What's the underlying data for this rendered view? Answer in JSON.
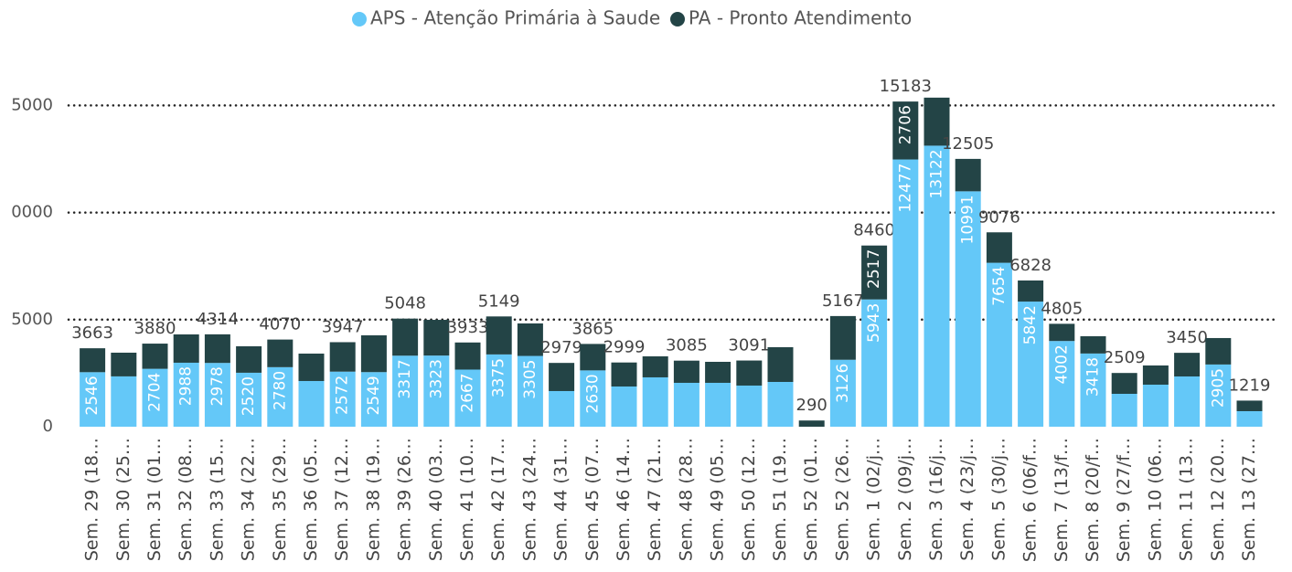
{
  "chart_data": {
    "type": "stacked_bar",
    "categories": [
      "Sem. 29 (18…",
      "Sem. 30 (25…",
      "Sem. 31 (01…",
      "Sem. 32 (08…",
      "Sem. 33 (15…",
      "Sem. 34 (22…",
      "Sem. 35 (29…",
      "Sem. 36 (05…",
      "Sem. 37 (12…",
      "Sem. 38 (19…",
      "Sem. 39 (26…",
      "Sem. 40 (03…",
      "Sem. 41 (10…",
      "Sem. 42 (17…",
      "Sem. 43 (24…",
      "Sem. 44 (31…",
      "Sem. 45 (07…",
      "Sem. 46 (14…",
      "Sem. 47 (21…",
      "Sem. 48 (28…",
      "Sem. 49 (05…",
      "Sem. 50 (12…",
      "Sem. 51 (19…",
      "Sem. 52 (01…",
      "Sem. 52 (26…",
      "Sem. 1 (02/j…",
      "Sem. 2 (09/j…",
      "Sem. 3 (16/j…",
      "Sem. 4 (23/j…",
      "Sem. 5 (30/j…",
      "Sem. 6 (06/f…",
      "Sem. 7 (13/f…",
      "Sem. 8 (20/f…",
      "Sem. 9 (27/f…",
      "Sem. 10 (06…",
      "Sem. 11 (13…",
      "Sem. 12 (20…",
      "Sem. 13 (27…"
    ],
    "series": [
      {
        "name": "APS - Atenção Primária à Saude",
        "color": "#64c8f8",
        "values": [
          2546,
          2350,
          2704,
          2988,
          2978,
          2520,
          2780,
          2134,
          2572,
          2549,
          3317,
          3323,
          2667,
          3375,
          3305,
          1665,
          2630,
          1878,
          2305,
          2049,
          2049,
          1921,
          2091,
          0,
          3126,
          5943,
          12477,
          13122,
          10991,
          7654,
          5842,
          4002,
          3418,
          1536,
          1963,
          2347,
          2905,
          726
        ],
        "labels": [
          2546,
          null,
          2704,
          2988,
          2978,
          2520,
          2780,
          null,
          2572,
          2549,
          3317,
          3323,
          2667,
          3375,
          3305,
          null,
          2630,
          null,
          null,
          null,
          null,
          null,
          null,
          null,
          3126,
          5943,
          12477,
          13122,
          10991,
          7654,
          5842,
          4002,
          3418,
          null,
          null,
          null,
          2905,
          null
        ]
      },
      {
        "name": "PA - Pronto Atendimento",
        "color": "#234446",
        "values": [
          1117,
          1107,
          1176,
          1322,
          1336,
          1236,
          1290,
          1280,
          1375,
          1719,
          1731,
          1667,
          1266,
          1774,
          1518,
          1314,
          1235,
          1121,
          981,
          1036,
          981,
          1170,
          1622,
          290,
          2041,
          2517,
          2706,
          2243,
          1514,
          1422,
          986,
          803,
          807,
          973,
          897,
          1103,
          1235,
          493
        ],
        "labels": [
          null,
          null,
          null,
          null,
          null,
          null,
          null,
          null,
          null,
          null,
          null,
          null,
          null,
          null,
          null,
          null,
          null,
          null,
          null,
          null,
          null,
          null,
          null,
          null,
          null,
          2517,
          2706,
          null,
          null,
          null,
          null,
          null,
          null,
          null,
          null,
          null,
          null,
          null
        ]
      }
    ],
    "total_labels": [
      3663,
      null,
      3880,
      null,
      4314,
      null,
      4070,
      null,
      3947,
      null,
      5048,
      null,
      3933,
      5149,
      null,
      2979,
      3865,
      2999,
      null,
      3085,
      null,
      3091,
      null,
      290,
      5167,
      8460,
      15183,
      null,
      12505,
      9076,
      6828,
      4805,
      null,
      2509,
      null,
      3450,
      null,
      1219
    ],
    "ylim": [
      0,
      15700
    ],
    "yticks": [
      0,
      5000,
      {
        "value": 10000,
        "label": "0000"
      },
      {
        "value": 15000,
        "label": "5000"
      }
    ],
    "grid": true
  }
}
